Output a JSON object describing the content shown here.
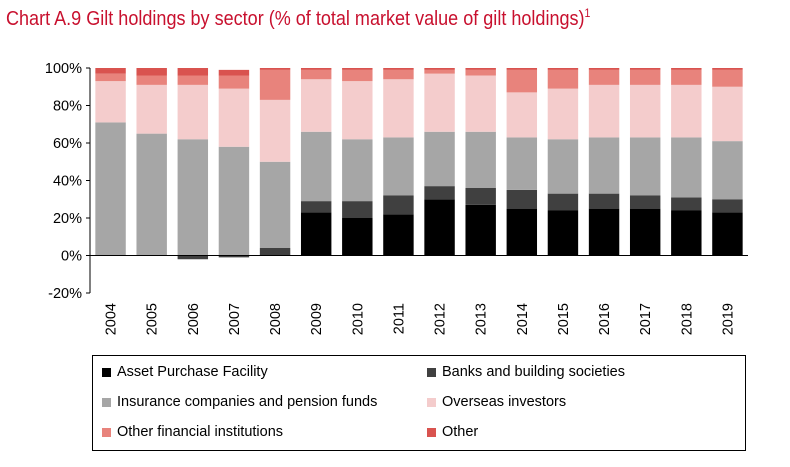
{
  "title": "Chart A.9 Gilt holdings by sector (% of total market value of gilt holdings)",
  "title_superscript": "1",
  "chart_data": {
    "type": "bar",
    "stacked": true,
    "categories": [
      "2004",
      "2005",
      "2006",
      "2007",
      "2008",
      "2009",
      "2010",
      "2011",
      "2012",
      "2013",
      "2014",
      "2015",
      "2016",
      "2017",
      "2018",
      "2019"
    ],
    "ylim": [
      -20,
      100
    ],
    "yticks": [
      "-20%",
      "0%",
      "20%",
      "40%",
      "60%",
      "80%",
      "100%"
    ],
    "ytick_values": [
      -20,
      0,
      20,
      40,
      60,
      80,
      100
    ],
    "grid": false,
    "legend_position": "bottom",
    "series": [
      {
        "name": "Asset Purchase Facility",
        "color": "#000000",
        "values": [
          0,
          0,
          0,
          0,
          0,
          23,
          20,
          22,
          30,
          27,
          25,
          24,
          25,
          25,
          24,
          23
        ]
      },
      {
        "name": "Banks and building societies",
        "color": "#404040",
        "values": [
          0,
          0,
          -2,
          -1,
          4,
          6,
          9,
          10,
          7,
          9,
          10,
          9,
          8,
          7,
          7,
          7
        ]
      },
      {
        "name": "Insurance companies and pension funds",
        "color": "#a6a6a6",
        "values": [
          71,
          65,
          62,
          58,
          46,
          37,
          33,
          31,
          29,
          30,
          28,
          29,
          30,
          31,
          32,
          31
        ]
      },
      {
        "name": "Overseas investors",
        "color": "#f4cccc",
        "values": [
          22,
          26,
          29,
          31,
          33,
          28,
          31,
          31,
          31,
          30,
          24,
          27,
          28,
          28,
          28,
          29
        ]
      },
      {
        "name": "Other financial institutions",
        "color": "#e8837c",
        "values": [
          4,
          5,
          5,
          7,
          16,
          5,
          6,
          5,
          2,
          3,
          12,
          10,
          8,
          8,
          8,
          9
        ]
      },
      {
        "name": "Other",
        "color": "#d9534f",
        "values": [
          3,
          4,
          4,
          3,
          1,
          1,
          1,
          1,
          1,
          1,
          1,
          1,
          1,
          1,
          1,
          1
        ]
      }
    ]
  },
  "legend": {
    "items": [
      {
        "label": "Asset Purchase Facility",
        "color": "#000000"
      },
      {
        "label": "Banks and building societies",
        "color": "#404040"
      },
      {
        "label": "Insurance companies and pension funds",
        "color": "#a6a6a6"
      },
      {
        "label": "Overseas investors",
        "color": "#f4cccc"
      },
      {
        "label": "Other financial institutions",
        "color": "#e8837c"
      },
      {
        "label": "Other",
        "color": "#d9534f"
      }
    ]
  }
}
